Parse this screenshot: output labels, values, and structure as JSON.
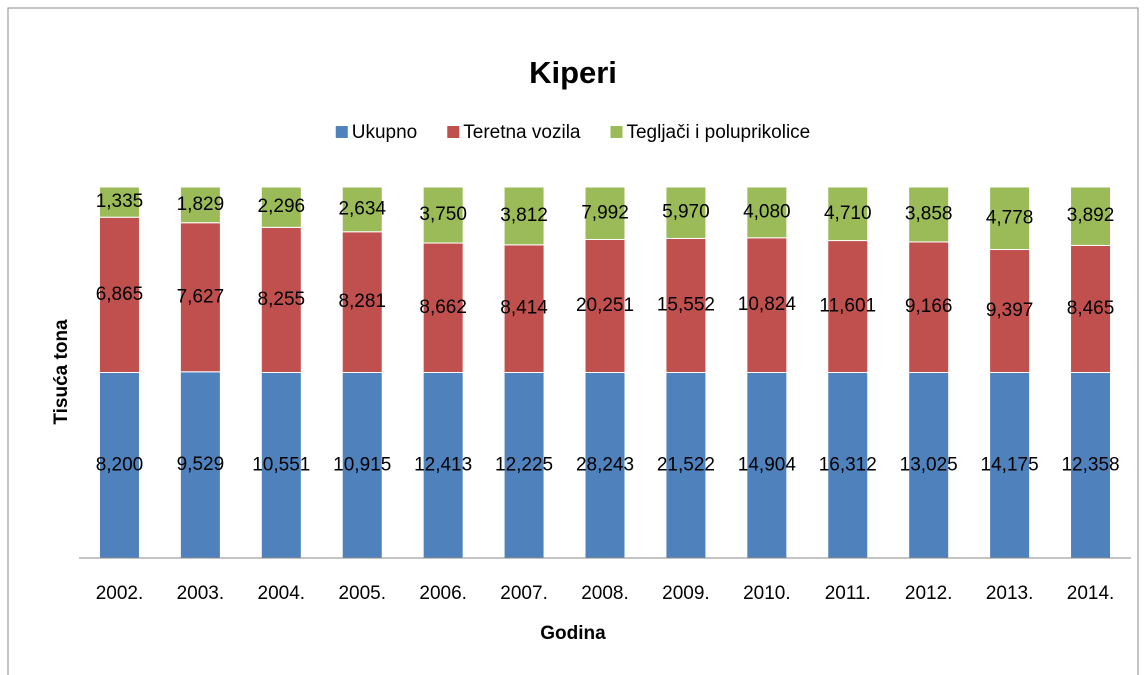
{
  "chart_data": {
    "type": "bar",
    "stacking": "percent",
    "title": "Kiperi",
    "x_label": "Godina",
    "y_label": "Tisuća tona",
    "legend": "top",
    "categories": [
      "2002.",
      "2003.",
      "2004.",
      "2005.",
      "2006.",
      "2007.",
      "2008.",
      "2009.",
      "2010.",
      "2011.",
      "2012.",
      "2013.",
      "2014."
    ],
    "series": [
      {
        "name": "Ukupno",
        "color": "#4f81bd",
        "values": [
          8200,
          9529,
          10551,
          10915,
          12413,
          12225,
          28243,
          21522,
          14904,
          16312,
          13025,
          14175,
          12358
        ],
        "value_labels": [
          "8,200",
          "9,529",
          "10,551",
          "10,915",
          "12,413",
          "12,225",
          "28,243",
          "21,522",
          "14,904",
          "16,312",
          "13,025",
          "14,175",
          "12,358"
        ]
      },
      {
        "name": "Teretna vozila",
        "color": "#c0504d",
        "values": [
          6865,
          7627,
          8255,
          8281,
          8662,
          8414,
          20251,
          15552,
          10824,
          11601,
          9166,
          9397,
          8465
        ],
        "value_labels": [
          "6,865",
          "7,627",
          "8,255",
          "8,281",
          "8,662",
          "8,414",
          "20,251",
          "15,552",
          "10,824",
          "11,601",
          "9,166",
          "9,397",
          "8,465"
        ]
      },
      {
        "name": "Tegljači i poluprikolice",
        "color": "#9bbb59",
        "values": [
          1335,
          1829,
          2296,
          2634,
          3750,
          3812,
          7992,
          5970,
          4080,
          4710,
          3858,
          4778,
          3892
        ],
        "value_labels": [
          "1,335",
          "1,829",
          "2,296",
          "2,634",
          "3,750",
          "3,812",
          "7,992",
          "5,970",
          "4,080",
          "4,710",
          "3,858",
          "4,778",
          "3,892"
        ]
      }
    ]
  }
}
